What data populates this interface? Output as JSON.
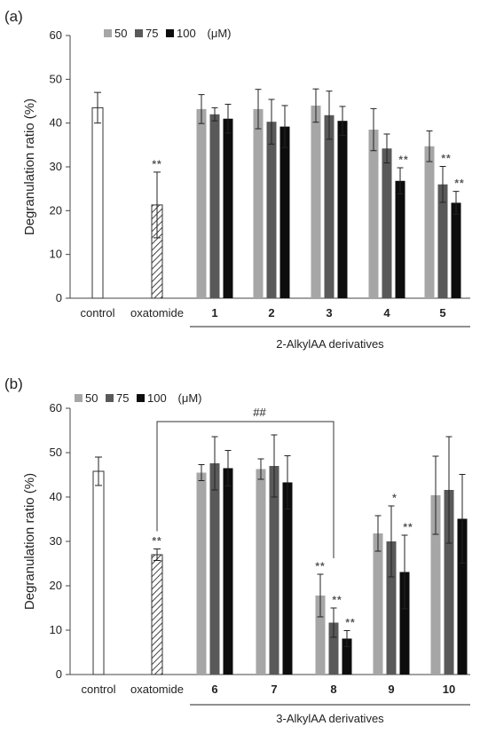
{
  "chart_data": [
    {
      "type": "bar",
      "panel_label": "(a)",
      "ylabel": "Degranulation ratio (%)",
      "ylim": [
        0,
        60
      ],
      "yticks": [
        "0",
        "10",
        "20",
        "30",
        "40",
        "50",
        "60"
      ],
      "legend": {
        "items": [
          "50",
          "75",
          "100"
        ],
        "unit": "(μM)"
      },
      "colors": {
        "c50": "#a6a6a6",
        "c75": "#595959",
        "c100": "#0d0d0d",
        "control": "#ffffff"
      },
      "controls": [
        {
          "label": "control",
          "value": 43.5,
          "error": 3.5,
          "sig": "",
          "pattern": "open"
        },
        {
          "label": "oxatomide",
          "value": 21.3,
          "error": 7.5,
          "sig": "**",
          "pattern": "hatch"
        }
      ],
      "groups": [
        {
          "label": "1",
          "values": [
            43.2,
            42.0,
            41.0
          ],
          "errors": [
            3.3,
            1.5,
            3.3
          ],
          "sig": [
            "",
            "",
            ""
          ]
        },
        {
          "label": "2",
          "values": [
            43.2,
            40.3,
            39.2
          ],
          "errors": [
            4.5,
            5.1,
            4.8
          ],
          "sig": [
            "",
            "",
            ""
          ]
        },
        {
          "label": "3",
          "values": [
            44.0,
            41.8,
            40.5
          ],
          "errors": [
            3.8,
            5.5,
            3.3
          ],
          "sig": [
            "",
            "",
            ""
          ]
        },
        {
          "label": "4",
          "values": [
            38.5,
            34.2,
            26.8
          ],
          "errors": [
            4.8,
            3.3,
            3.0
          ],
          "sig": [
            "",
            "",
            "**"
          ]
        },
        {
          "label": "5",
          "values": [
            34.7,
            26.0,
            21.8
          ],
          "errors": [
            3.5,
            4.1,
            2.6
          ],
          "sig": [
            "",
            "**",
            "**"
          ]
        }
      ],
      "group_caption": "2-AlkylAA derivatives"
    },
    {
      "type": "bar",
      "panel_label": "(b)",
      "ylabel": "Degranulation ratio (%)",
      "ylim": [
        0,
        60
      ],
      "yticks": [
        "0",
        "10",
        "20",
        "30",
        "40",
        "50",
        "60"
      ],
      "legend": {
        "items": [
          "50",
          "75",
          "100"
        ],
        "unit": "(μM)"
      },
      "colors": {
        "c50": "#a6a6a6",
        "c75": "#595959",
        "c100": "#0d0d0d",
        "control": "#ffffff"
      },
      "controls": [
        {
          "label": "control",
          "value": 45.8,
          "error": 3.2,
          "sig": "",
          "pattern": "open"
        },
        {
          "label": "oxatomide",
          "value": 27.0,
          "error": 1.3,
          "sig": "**",
          "pattern": "hatch"
        }
      ],
      "groups": [
        {
          "label": "6",
          "values": [
            45.5,
            47.6,
            46.5
          ],
          "errors": [
            1.8,
            6.0,
            4.0
          ],
          "sig": [
            "",
            "",
            ""
          ]
        },
        {
          "label": "7",
          "values": [
            46.3,
            47.0,
            43.3
          ],
          "errors": [
            2.3,
            7.0,
            6.0
          ],
          "sig": [
            "",
            "",
            ""
          ]
        },
        {
          "label": "8",
          "values": [
            17.8,
            11.7,
            8.1
          ],
          "errors": [
            4.8,
            3.3,
            1.8
          ],
          "sig": [
            "**",
            "**",
            "**"
          ]
        },
        {
          "label": "9",
          "values": [
            31.8,
            30.0,
            23.1
          ],
          "errors": [
            4.0,
            8.0,
            8.3
          ],
          "sig": [
            "",
            "*",
            "**"
          ]
        },
        {
          "label": "10",
          "values": [
            40.4,
            41.6,
            35.1
          ],
          "errors": [
            8.8,
            12.0,
            10.0
          ],
          "sig": [
            "",
            "",
            ""
          ]
        }
      ],
      "group_caption": "3-AlkylAA derivatives",
      "bracket": {
        "label": "##",
        "from": "oxatomide",
        "to": "8"
      }
    }
  ]
}
